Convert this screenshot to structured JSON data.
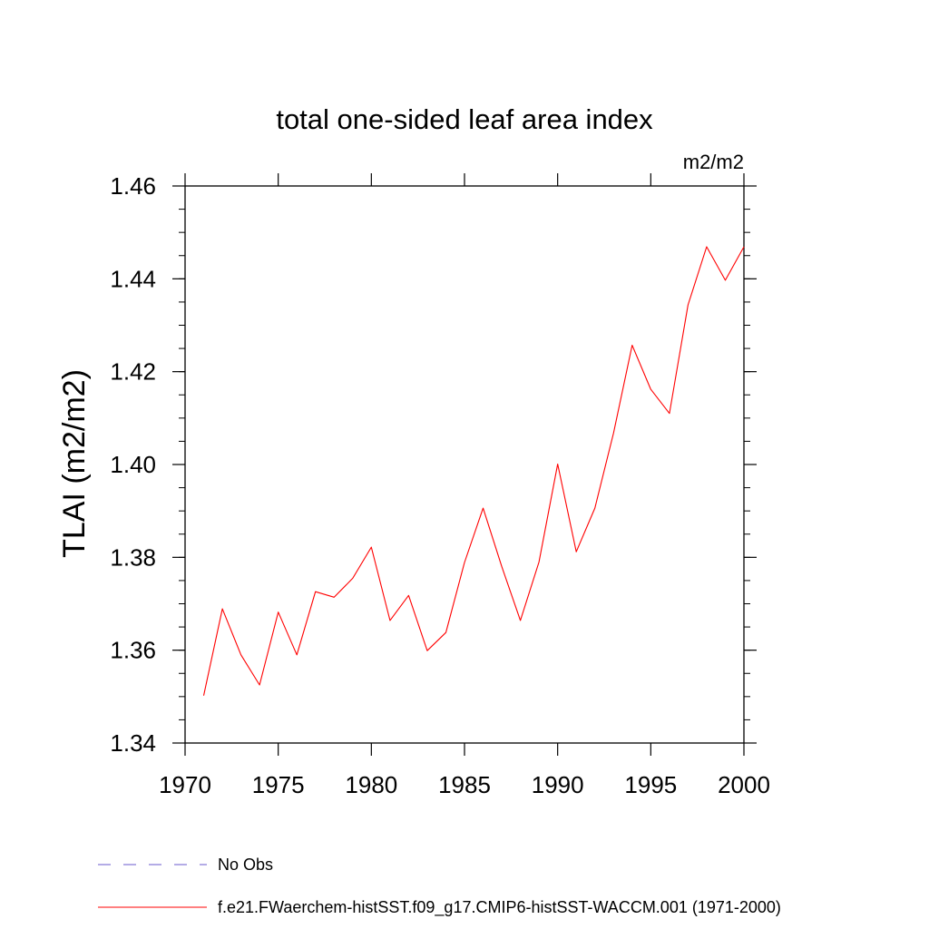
{
  "chart_data": {
    "type": "line",
    "title": "total one-sided leaf area index",
    "units_label": "m2/m2",
    "ylabel": "TLAI  (m2/m2)",
    "xlabel": "",
    "xlim": [
      1970,
      2000
    ],
    "ylim": [
      1.34,
      1.46
    ],
    "x_ticks": [
      1970,
      1975,
      1980,
      1985,
      1990,
      1995,
      2000
    ],
    "y_ticks": [
      1.34,
      1.36,
      1.38,
      1.4,
      1.42,
      1.44,
      1.46
    ],
    "x_tick_labels": [
      "1970",
      "1975",
      "1980",
      "1985",
      "1990",
      "1995",
      "2000"
    ],
    "y_tick_labels": [
      "1.34",
      "1.36",
      "1.38",
      "1.40",
      "1.42",
      "1.44",
      "1.46"
    ],
    "grid": false,
    "legend_position": "bottom",
    "series": [
      {
        "name": "f.e21.FWaerchem-histSST.f09_g17.CMIP6-histSST-WACCM.001 (1971-2000)",
        "color": "#ff0000",
        "style": "solid",
        "x": [
          1971,
          1972,
          1973,
          1974,
          1975,
          1976,
          1977,
          1978,
          1979,
          1980,
          1981,
          1982,
          1983,
          1984,
          1985,
          1986,
          1987,
          1988,
          1989,
          1990,
          1991,
          1992,
          1993,
          1994,
          1995,
          1996,
          1997,
          1998,
          1999,
          2000
        ],
        "values": [
          1.3502,
          1.3689,
          1.359,
          1.3525,
          1.3682,
          1.359,
          1.3726,
          1.3714,
          1.3755,
          1.3822,
          1.3664,
          1.3718,
          1.3599,
          1.3638,
          1.3789,
          1.3906,
          1.378,
          1.3664,
          1.379,
          1.4001,
          1.3812,
          1.3906,
          1.4068,
          1.4257,
          1.4162,
          1.411,
          1.4344,
          1.4469,
          1.4397,
          1.4469
        ]
      }
    ],
    "legend": [
      {
        "label": "No Obs",
        "color": "#6a5acd",
        "style": "dashed"
      },
      {
        "label": "f.e21.FWaerchem-histSST.f09_g17.CMIP6-histSST-WACCM.001 (1971-2000)",
        "color": "#ff0000",
        "style": "solid"
      }
    ]
  }
}
